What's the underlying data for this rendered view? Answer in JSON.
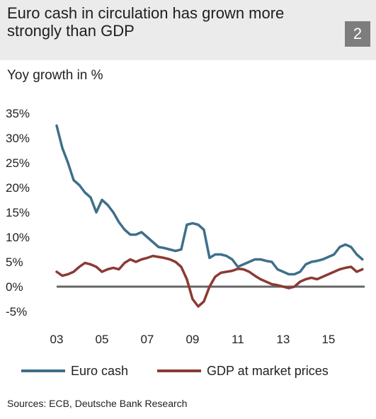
{
  "header": {
    "title": "Euro cash in circulation has grown more strongly than GDP",
    "badge": "2"
  },
  "subtitle": "Yoy growth in %",
  "source": "Sources: ECB, Deutsche Bank Research",
  "colors": {
    "euro_cash": "#3f6f8a",
    "gdp": "#8b3a34",
    "zero_line": "#666666",
    "header_bg": "#ebebeb",
    "badge_bg": "#7d7d7d"
  },
  "chart_data": {
    "type": "line",
    "title": "Euro cash in circulation has grown more strongly than GDP",
    "ylabel": "Yoy growth in %",
    "xlabel": "",
    "ylim": [
      -5,
      35
    ],
    "xlim": [
      2003,
      2016.6
    ],
    "yticks": [
      35,
      30,
      25,
      20,
      15,
      10,
      5,
      0,
      -5
    ],
    "ytick_labels": [
      "35%",
      "30%",
      "25%",
      "20%",
      "15%",
      "10%",
      "5%",
      "0%",
      "-5%"
    ],
    "xticks": [
      2003,
      2005,
      2007,
      2009,
      2011,
      2013,
      2015
    ],
    "xtick_labels": [
      "03",
      "05",
      "07",
      "09",
      "11",
      "13",
      "15"
    ],
    "grid": false,
    "legend": "bottom",
    "series": [
      {
        "name": "Euro cash",
        "x": [
          2003.0,
          2003.25,
          2003.5,
          2003.75,
          2004.0,
          2004.25,
          2004.5,
          2004.75,
          2005.0,
          2005.25,
          2005.5,
          2005.75,
          2006.0,
          2006.25,
          2006.5,
          2006.75,
          2007.0,
          2007.25,
          2007.5,
          2007.75,
          2008.0,
          2008.25,
          2008.5,
          2008.75,
          2009.0,
          2009.25,
          2009.5,
          2009.75,
          2010.0,
          2010.25,
          2010.5,
          2010.75,
          2011.0,
          2011.25,
          2011.5,
          2011.75,
          2012.0,
          2012.25,
          2012.5,
          2012.75,
          2013.0,
          2013.25,
          2013.5,
          2013.75,
          2014.0,
          2014.25,
          2014.5,
          2014.75,
          2015.0,
          2015.25,
          2015.5,
          2015.75,
          2016.0,
          2016.25,
          2016.5
        ],
        "values": [
          32.5,
          28.0,
          25.0,
          21.5,
          20.5,
          19.0,
          18.0,
          15.0,
          17.5,
          16.5,
          15.0,
          13.0,
          11.5,
          10.5,
          10.5,
          11.0,
          10.0,
          9.0,
          8.0,
          7.8,
          7.5,
          7.2,
          7.5,
          12.5,
          12.8,
          12.5,
          11.5,
          5.8,
          6.5,
          6.5,
          6.2,
          5.5,
          4.0,
          4.5,
          5.0,
          5.5,
          5.5,
          5.2,
          5.0,
          3.5,
          3.0,
          2.5,
          2.5,
          3.0,
          4.5,
          5.0,
          5.2,
          5.5,
          6.0,
          6.5,
          8.0,
          8.5,
          8.0,
          6.5,
          5.5
        ]
      },
      {
        "name": "GDP at market prices",
        "x": [
          2003.0,
          2003.25,
          2003.5,
          2003.75,
          2004.0,
          2004.25,
          2004.5,
          2004.75,
          2005.0,
          2005.25,
          2005.5,
          2005.75,
          2006.0,
          2006.25,
          2006.5,
          2006.75,
          2007.0,
          2007.25,
          2007.5,
          2007.75,
          2008.0,
          2008.25,
          2008.5,
          2008.75,
          2009.0,
          2009.25,
          2009.5,
          2009.75,
          2010.0,
          2010.25,
          2010.5,
          2010.75,
          2011.0,
          2011.25,
          2011.5,
          2011.75,
          2012.0,
          2012.25,
          2012.5,
          2012.75,
          2013.0,
          2013.25,
          2013.5,
          2013.75,
          2014.0,
          2014.25,
          2014.5,
          2014.75,
          2015.0,
          2015.25,
          2015.5,
          2015.75,
          2016.0,
          2016.25,
          2016.5
        ],
        "values": [
          3.0,
          2.2,
          2.5,
          3.0,
          4.0,
          4.8,
          4.5,
          4.0,
          3.0,
          3.5,
          3.8,
          3.5,
          4.8,
          5.5,
          5.0,
          5.5,
          5.8,
          6.2,
          6.0,
          5.8,
          5.5,
          5.0,
          4.0,
          1.5,
          -2.5,
          -4.0,
          -3.0,
          0.0,
          2.0,
          2.8,
          3.0,
          3.2,
          3.6,
          3.5,
          3.0,
          2.2,
          1.5,
          1.0,
          0.5,
          0.3,
          0.0,
          -0.3,
          0.0,
          1.0,
          1.5,
          1.8,
          1.5,
          2.0,
          2.5,
          3.0,
          3.5,
          3.8,
          4.0,
          3.0,
          3.5
        ]
      }
    ]
  }
}
